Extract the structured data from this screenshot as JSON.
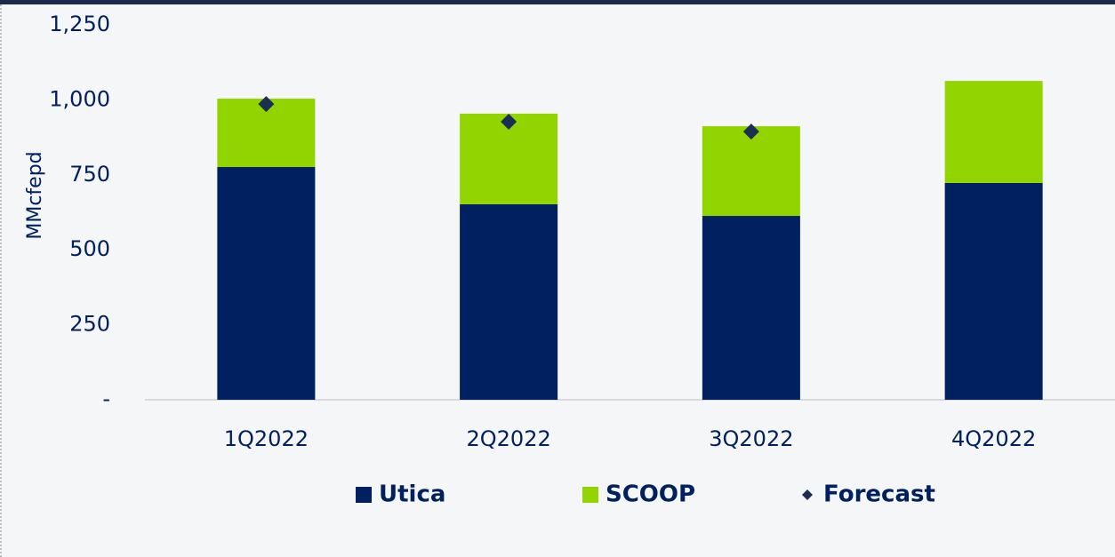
{
  "chart_data": {
    "type": "bar",
    "stacked": true,
    "y_label": "MMcfepd",
    "categories": [
      "1Q2022",
      "2Q2022",
      "3Q2022",
      "4Q2022"
    ],
    "series": [
      {
        "name": "Utica",
        "color": "#002060",
        "values": [
          776,
          652,
          613,
          723
        ]
      },
      {
        "name": "SCOOP",
        "color": "#92d400",
        "values": [
          228,
          302,
          299,
          340
        ]
      },
      {
        "name": "Forecast",
        "color": "#1c2f52",
        "type": "scatter",
        "values": [
          986,
          927,
          894,
          null
        ]
      }
    ],
    "ylim": [
      0,
      1250
    ],
    "yticks": [
      {
        "value": 0,
        "label": "-"
      },
      250,
      500,
      750,
      {
        "value": 1000,
        "label": "1,000"
      },
      {
        "value": 1250,
        "label": "1,250"
      }
    ],
    "legend": "bottom"
  }
}
